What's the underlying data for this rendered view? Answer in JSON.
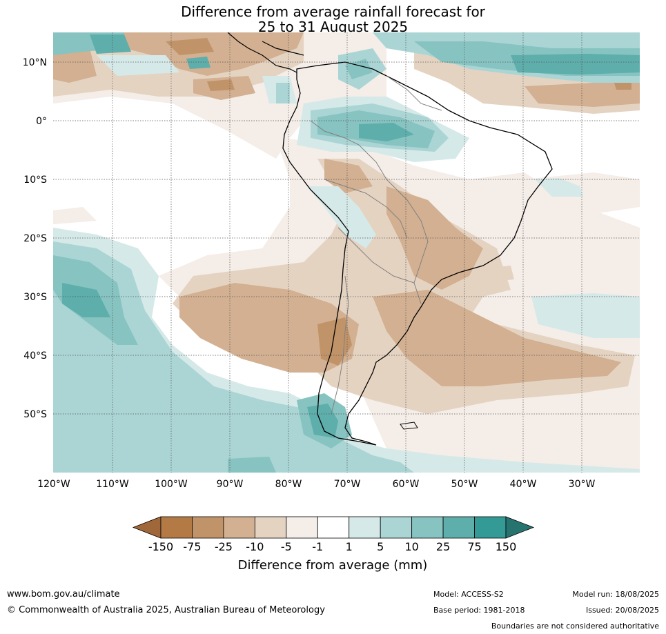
{
  "title": {
    "line1": "Difference from average rainfall forecast for",
    "line2": "25 to 31 August 2025"
  },
  "map": {
    "lat_labels": [
      "10°N",
      "0°",
      "10°S",
      "20°S",
      "30°S",
      "40°S",
      "50°S"
    ],
    "lon_labels": [
      "120°W",
      "110°W",
      "100°W",
      "90°W",
      "80°W",
      "70°W",
      "60°W",
      "50°W",
      "40°W",
      "30°W"
    ]
  },
  "colorbar": {
    "labels": [
      "-150",
      "-75",
      "-25",
      "-10",
      "-5",
      "-1",
      "1",
      "5",
      "10",
      "25",
      "75",
      "150"
    ],
    "colors": [
      "#a0683a",
      "#b37a45",
      "#c19369",
      "#d2b091",
      "#e5d3c2",
      "#f4ede8",
      "#ffffff",
      "#d5e9e8",
      "#aad5d4",
      "#86c3c1",
      "#5eaeac",
      "#339a96",
      "#267370"
    ],
    "title": "Difference from average (mm)"
  },
  "footer": {
    "url": "www.bom.gov.au/climate",
    "copyright": "© Commonwealth of Australia 2025, Australian Bureau of Meteorology",
    "model": "Model: ACCESS-S2",
    "base_period": "Base period: 1981-2018",
    "model_run": "Model run: 18/08/2025",
    "issued": "Issued: 20/08/2025",
    "disclaimer": "Boundaries are not considered authoritative"
  }
}
